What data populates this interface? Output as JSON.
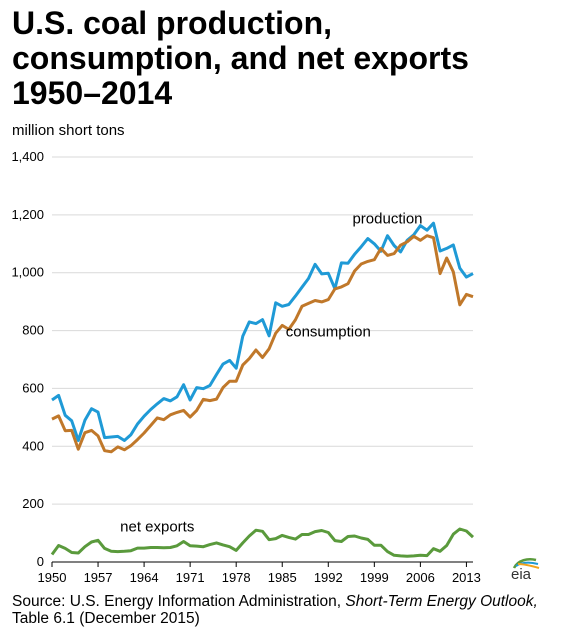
{
  "title_lines": [
    "U.S. coal production,",
    "consumption, and net exports",
    "1950–2014"
  ],
  "ylabel": "million short tons",
  "logo_text": "eia",
  "source": {
    "prefix": "Source: U.S. Energy Information Administration, ",
    "italic": "Short-Term Energy Outlook,",
    "suffix": " Table 6.1 (December 2015)"
  },
  "chart_data": {
    "type": "line",
    "title": "U.S. coal production, consumption, and net exports 1950–2014",
    "ylabel": "million short tons",
    "xlabel": "",
    "ylim": [
      0,
      1400
    ],
    "xlim": [
      1950,
      2014
    ],
    "yticks": [
      0,
      200,
      400,
      600,
      800,
      1000,
      1200,
      1400
    ],
    "ytick_labels": [
      "0",
      "200",
      "400",
      "600",
      "800",
      "1,000",
      "1,200",
      "1,400"
    ],
    "xticks": [
      1950,
      1957,
      1964,
      1971,
      1978,
      1985,
      1992,
      1999,
      2006,
      2013
    ],
    "grid": "horizontal",
    "legend": "none (direct labels)",
    "x": [
      1950,
      1951,
      1952,
      1953,
      1954,
      1955,
      1956,
      1957,
      1958,
      1959,
      1960,
      1961,
      1962,
      1963,
      1964,
      1965,
      1966,
      1967,
      1968,
      1969,
      1970,
      1971,
      1972,
      1973,
      1974,
      1975,
      1976,
      1977,
      1978,
      1979,
      1980,
      1981,
      1982,
      1983,
      1984,
      1985,
      1986,
      1987,
      1988,
      1989,
      1990,
      1991,
      1992,
      1993,
      1994,
      1995,
      1996,
      1997,
      1998,
      1999,
      2000,
      2001,
      2002,
      2003,
      2004,
      2005,
      2006,
      2007,
      2008,
      2009,
      2010,
      2011,
      2012,
      2013,
      2014
    ],
    "series": [
      {
        "name": "production",
        "color": "#1f9ad6",
        "values": [
          560,
          576,
          507,
          488,
          420,
          490,
          530,
          518,
          430,
          432,
          434,
          420,
          440,
          477,
          504,
          527,
          547,
          565,
          557,
          571,
          613,
          560,
          603,
          599,
          610,
          648,
          684,
          697,
          670,
          781,
          830,
          824,
          838,
          782,
          896,
          884,
          890,
          919,
          950,
          980,
          1029,
          996,
          998,
          945,
          1034,
          1033,
          1064,
          1090,
          1118,
          1100,
          1074,
          1128,
          1094,
          1072,
          1112,
          1131,
          1163,
          1147,
          1171,
          1075,
          1084,
          1096,
          1016,
          985,
          997
        ]
      },
      {
        "name": "consumption",
        "color": "#c0782a",
        "values": [
          494,
          505,
          454,
          455,
          390,
          447,
          455,
          436,
          385,
          381,
          398,
          388,
          402,
          423,
          446,
          472,
          498,
          492,
          509,
          517,
          524,
          501,
          524,
          562,
          558,
          563,
          603,
          625,
          625,
          681,
          703,
          733,
          707,
          737,
          791,
          818,
          804,
          837,
          884,
          894,
          904,
          899,
          907,
          944,
          951,
          962,
          1006,
          1030,
          1039,
          1045,
          1084,
          1060,
          1066,
          1095,
          1107,
          1126,
          1112,
          1128,
          1121,
          997,
          1051,
          1003,
          889,
          925,
          917
        ]
      },
      {
        "name": "net exports",
        "color": "#5a9a3c",
        "values": [
          26,
          57,
          47,
          33,
          31,
          53,
          69,
          75,
          47,
          37,
          36,
          37,
          39,
          48,
          48,
          50,
          50,
          49,
          50,
          56,
          71,
          56,
          55,
          53,
          60,
          66,
          59,
          53,
          40,
          66,
          90,
          110,
          106,
          77,
          81,
          92,
          85,
          79,
          95,
          95,
          105,
          109,
          102,
          74,
          71,
          88,
          90,
          83,
          78,
          58,
          58,
          36,
          23,
          21,
          20,
          21,
          23,
          22,
          46,
          37,
          57,
          96,
          114,
          107,
          86
        ]
      }
    ],
    "annotations": [
      {
        "text": "production",
        "x": 2001,
        "y": 1170
      },
      {
        "text": "consumption",
        "x": 1992,
        "y": 780
      },
      {
        "text": "net exports",
        "x": 1966,
        "y": 105
      }
    ]
  }
}
